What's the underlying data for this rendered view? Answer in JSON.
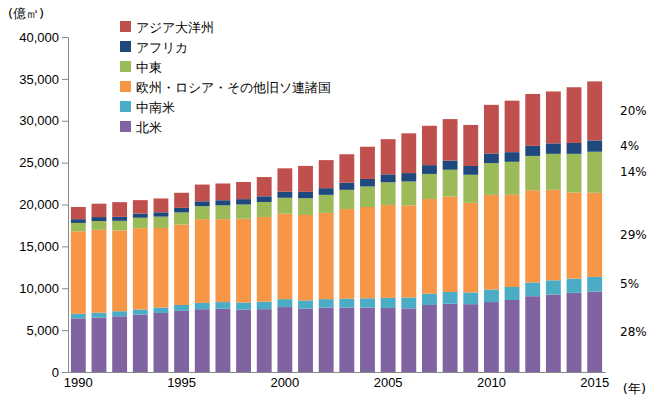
{
  "chart_data": {
    "type": "bar",
    "stacked": true,
    "legend": "top-left",
    "y_label": "(億㎥)",
    "x_label": "(年)",
    "categories": [
      "1990",
      null,
      null,
      null,
      null,
      "1995",
      null,
      null,
      null,
      null,
      "2000",
      null,
      null,
      null,
      null,
      "2005",
      null,
      null,
      null,
      null,
      "2010",
      null,
      null,
      null,
      null,
      "2015"
    ],
    "ylim": [
      0,
      40000
    ],
    "yticks": [
      0,
      {
        "value": 5000,
        "label": "5,000"
      },
      {
        "value": 10000,
        "label": "10,000"
      },
      {
        "value": 15000,
        "label": "15,000"
      },
      {
        "value": 20000,
        "label": "20,000"
      },
      {
        "value": 25000,
        "label": "25,000"
      },
      {
        "value": 30000,
        "label": "30,000"
      },
      {
        "value": 35000,
        "label": "35,000"
      },
      {
        "value": 40000,
        "label": "40,000"
      }
    ],
    "series": [
      {
        "name": "北米",
        "color": "#8064a2",
        "values": [
          6400,
          6500,
          6650,
          6850,
          7050,
          7300,
          7500,
          7550,
          7450,
          7500,
          7750,
          7550,
          7700,
          7700,
          7700,
          7650,
          7600,
          8000,
          8150,
          8100,
          8350,
          8600,
          9050,
          9250,
          9450,
          9600
        ]
      },
      {
        "name": "中南米",
        "color": "#4bacc6",
        "values": [
          550,
          580,
          600,
          620,
          650,
          700,
          750,
          800,
          850,
          900,
          950,
          1000,
          1000,
          1050,
          1100,
          1200,
          1300,
          1350,
          1400,
          1400,
          1500,
          1550,
          1650,
          1700,
          1700,
          1750
        ]
      },
      {
        "name": "欧州・ロシア・その他旧ソ連諸国",
        "color": "#f79646",
        "values": [
          9850,
          9900,
          9650,
          9700,
          9500,
          9600,
          10000,
          9900,
          10000,
          10100,
          10200,
          10200,
          10300,
          10700,
          10900,
          11100,
          11000,
          11300,
          11400,
          10700,
          11300,
          11000,
          11000,
          10800,
          10300,
          10050
        ]
      },
      {
        "name": "中東",
        "color": "#9bbb59",
        "values": [
          1000,
          1050,
          1150,
          1250,
          1350,
          1450,
          1550,
          1650,
          1700,
          1800,
          1900,
          2000,
          2150,
          2300,
          2450,
          2700,
          2850,
          3000,
          3200,
          3350,
          3800,
          3950,
          4100,
          4300,
          4600,
          4900
        ]
      },
      {
        "name": "アフリカ",
        "color": "#1f497d",
        "values": [
          450,
          470,
          480,
          500,
          520,
          550,
          580,
          610,
          640,
          680,
          720,
          760,
          800,
          850,
          900,
          950,
          1000,
          1050,
          1100,
          1050,
          1150,
          1150,
          1200,
          1250,
          1300,
          1350
        ]
      },
      {
        "name": "アジア大洋州",
        "color": "#c0504d",
        "values": [
          1450,
          1600,
          1750,
          1600,
          1650,
          1800,
          2000,
          2000,
          2050,
          2300,
          2800,
          3100,
          3350,
          3400,
          3850,
          4200,
          4750,
          4700,
          4950,
          4900,
          5800,
          6150,
          6200,
          6200,
          6650,
          7050
        ]
      }
    ],
    "annotations": [
      "28%",
      "5%",
      "29%",
      "14%",
      "4%",
      "20%"
    ]
  }
}
